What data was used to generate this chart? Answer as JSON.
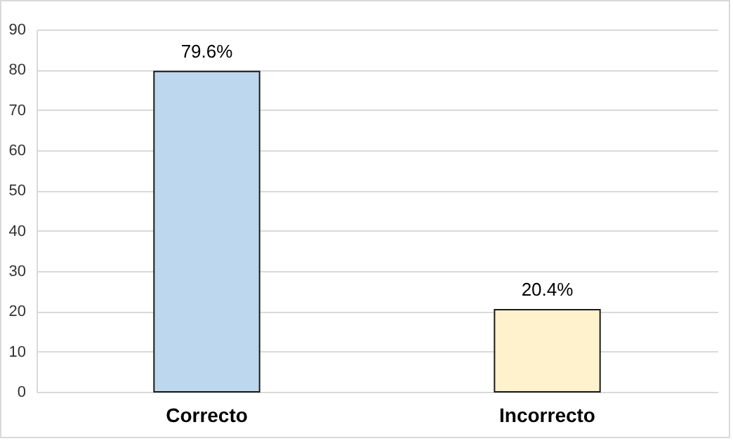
{
  "chart_data": {
    "type": "bar",
    "categories": [
      "Correcto",
      "Incorrecto"
    ],
    "values": [
      79.6,
      20.4
    ],
    "colors": [
      "#bdd7ee",
      "#fff2cc"
    ],
    "value_labels": [
      "79.6%",
      "20.4%"
    ],
    "ylim": [
      0,
      90
    ],
    "yticks": [
      0,
      10,
      20,
      30,
      40,
      50,
      60,
      70,
      80,
      90
    ],
    "grid": "y"
  }
}
